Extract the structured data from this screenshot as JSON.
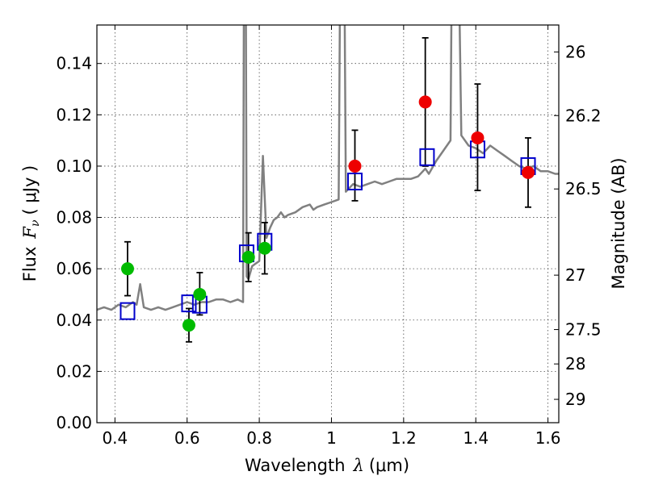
{
  "chart_data": {
    "type": "scatter",
    "xlabel_prefix": "Wavelength",
    "xlabel_symbol": "λ",
    "xlabel_unit": "(μm)",
    "ylabel_prefix": "Flux",
    "ylabel_symbol": "F",
    "ylabel_subscript": "ν",
    "ylabel_unit": "( μJy )",
    "ylabel_right": "Magnitude (AB)",
    "xlim": [
      0.35,
      1.63
    ],
    "ylim": [
      0.0,
      0.155
    ],
    "grid": true,
    "x_ticks": [
      0.4,
      0.6,
      0.8,
      1.0,
      1.2,
      1.4,
      1.6
    ],
    "x_tick_labels": [
      "0.4",
      "0.6",
      "0.8",
      "1",
      "1.2",
      "1.4",
      "1.6"
    ],
    "y_ticks": [
      0.0,
      0.02,
      0.04,
      0.06,
      0.08,
      0.1,
      0.12,
      0.14
    ],
    "y_tick_labels": [
      "0.00",
      "0.02",
      "0.04",
      "0.06",
      "0.08",
      "0.10",
      "0.12",
      "0.14"
    ],
    "right_ticks": [
      {
        "flux": 0.1445,
        "label": "26"
      },
      {
        "flux": 0.1197,
        "label": "26.2"
      },
      {
        "flux": 0.0911,
        "label": "26.5"
      },
      {
        "flux": 0.0575,
        "label": "27"
      },
      {
        "flux": 0.0363,
        "label": "27.5"
      },
      {
        "flux": 0.0229,
        "label": "28"
      },
      {
        "flux": 0.0091,
        "label": "29"
      }
    ],
    "colors": {
      "spectrum": "#808080",
      "green": "#00bb00",
      "red": "#ee0000",
      "model_box": "#0000cc",
      "errorbar": "#000000"
    },
    "spectrum": {
      "x": [
        0.35,
        0.37,
        0.39,
        0.41,
        0.43,
        0.45,
        0.46,
        0.47,
        0.48,
        0.5,
        0.52,
        0.54,
        0.56,
        0.58,
        0.6,
        0.62,
        0.64,
        0.66,
        0.68,
        0.7,
        0.72,
        0.74,
        0.755,
        0.76,
        0.765,
        0.77,
        0.78,
        0.79,
        0.8,
        0.81,
        0.82,
        0.83,
        0.84,
        0.85,
        0.86,
        0.87,
        0.88,
        0.9,
        0.92,
        0.94,
        0.95,
        0.96,
        0.98,
        1.0,
        1.02,
        1.03,
        1.04,
        1.06,
        1.08,
        1.1,
        1.12,
        1.14,
        1.16,
        1.18,
        1.2,
        1.22,
        1.24,
        1.26,
        1.27,
        1.29,
        1.31,
        1.33,
        1.34,
        1.36,
        1.38,
        1.4,
        1.42,
        1.44,
        1.46,
        1.48,
        1.5,
        1.52,
        1.54,
        1.56,
        1.58,
        1.6,
        1.62,
        1.63
      ],
      "y": [
        0.044,
        0.045,
        0.044,
        0.046,
        0.045,
        0.047,
        0.046,
        0.054,
        0.045,
        0.044,
        0.045,
        0.044,
        0.045,
        0.046,
        0.047,
        0.046,
        0.047,
        0.047,
        0.048,
        0.048,
        0.047,
        0.048,
        0.047,
        0.3,
        0.057,
        0.056,
        0.061,
        0.062,
        0.063,
        0.104,
        0.072,
        0.076,
        0.079,
        0.08,
        0.082,
        0.08,
        0.081,
        0.082,
        0.084,
        0.085,
        0.083,
        0.084,
        0.085,
        0.086,
        0.087,
        0.3,
        0.09,
        0.093,
        0.092,
        0.093,
        0.094,
        0.093,
        0.094,
        0.095,
        0.095,
        0.095,
        0.096,
        0.099,
        0.097,
        0.102,
        0.106,
        0.11,
        0.3,
        0.112,
        0.108,
        0.107,
        0.105,
        0.108,
        0.106,
        0.104,
        0.102,
        0.1,
        0.099,
        0.1,
        0.098,
        0.098,
        0.097,
        0.097
      ]
    },
    "green_points": [
      {
        "x": 0.435,
        "y": 0.06,
        "err_low": 0.0105,
        "err_high": 0.0105
      },
      {
        "x": 0.605,
        "y": 0.038,
        "err_low": 0.0065,
        "err_high": 0.0065
      },
      {
        "x": 0.635,
        "y": 0.05,
        "err_low": 0.008,
        "err_high": 0.0085
      },
      {
        "x": 0.77,
        "y": 0.0645,
        "err_low": 0.0095,
        "err_high": 0.0095
      },
      {
        "x": 0.815,
        "y": 0.068,
        "err_low": 0.01,
        "err_high": 0.01
      }
    ],
    "red_points": [
      {
        "x": 1.065,
        "y": 0.1,
        "err_low": 0.0135,
        "err_high": 0.014
      },
      {
        "x": 1.26,
        "y": 0.125,
        "err_low": 0.025,
        "err_high": 0.025
      },
      {
        "x": 1.405,
        "y": 0.111,
        "err_low": 0.0205,
        "err_high": 0.021
      },
      {
        "x": 1.545,
        "y": 0.0975,
        "err_low": 0.0135,
        "err_high": 0.0135
      }
    ],
    "model_boxes": [
      {
        "x": 0.435,
        "y": 0.0435
      },
      {
        "x": 0.605,
        "y": 0.0465
      },
      {
        "x": 0.635,
        "y": 0.046
      },
      {
        "x": 0.765,
        "y": 0.066
      },
      {
        "x": 0.815,
        "y": 0.0705
      },
      {
        "x": 1.065,
        "y": 0.094
      },
      {
        "x": 1.265,
        "y": 0.1035
      },
      {
        "x": 1.405,
        "y": 0.1065
      },
      {
        "x": 1.545,
        "y": 0.1
      }
    ]
  }
}
